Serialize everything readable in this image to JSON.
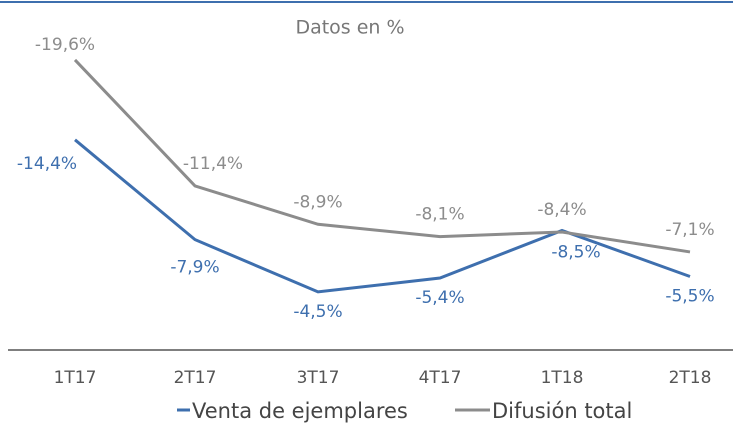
{
  "chart_data": {
    "type": "line",
    "title": "Datos en %",
    "categories": [
      "1T17",
      "2T17",
      "3T17",
      "4T17",
      "1T18",
      "2T18"
    ],
    "ylim": [
      0,
      -23.5
    ],
    "series": [
      {
        "name": "Venta de ejemplares",
        "color": "#3e6fae",
        "values": [
          -14.4,
          -7.9,
          -4.5,
          -5.4,
          -8.5,
          -5.5
        ],
        "value_labels": [
          "-14,4%",
          "-7,9%",
          "-4,5%",
          "-5,4%",
          "-8,5%",
          "-5,5%"
        ]
      },
      {
        "name": "Difusión total",
        "color": "#8c8c8c",
        "values": [
          -19.6,
          -11.4,
          -8.9,
          -8.1,
          -8.4,
          -7.1
        ],
        "value_labels": [
          "-19,6%",
          "-11,4%",
          "-8,9%",
          "-8,1%",
          "-8,4%",
          "-7,1%"
        ]
      }
    ]
  }
}
